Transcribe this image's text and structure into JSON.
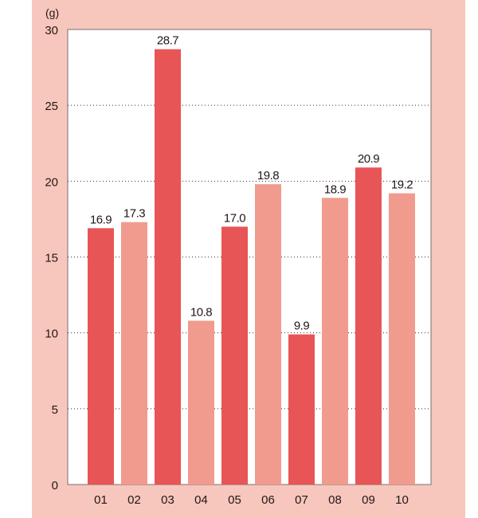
{
  "chart_data": {
    "type": "bar",
    "unit_label": "(g)",
    "categories": [
      "01",
      "02",
      "03",
      "04",
      "05",
      "06",
      "07",
      "08",
      "09",
      "10"
    ],
    "values": [
      16.9,
      17.3,
      28.7,
      10.8,
      17.0,
      19.8,
      9.9,
      18.9,
      20.9,
      19.2
    ],
    "value_labels": [
      "16.9",
      "17.3",
      "28.7",
      "10.8",
      "17.0",
      "19.8",
      "9.9",
      "18.9",
      "20.9",
      "19.2"
    ],
    "ylim": [
      0,
      30
    ],
    "yticks": [
      "0",
      "5",
      "10",
      "15",
      "20",
      "25",
      "30"
    ],
    "grid": "horizontal dotted",
    "colors": {
      "odd": "#e85556",
      "even": "#f19b8f",
      "background": "#f7c6bc",
      "plot": "#ffffff"
    }
  }
}
